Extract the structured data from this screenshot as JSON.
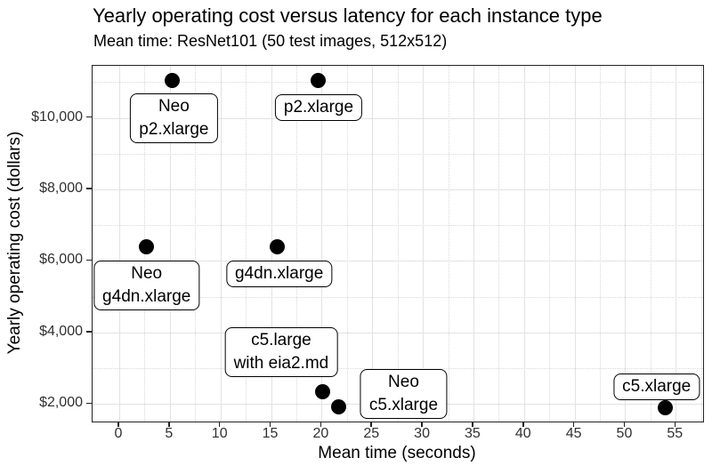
{
  "chart_data": {
    "type": "scatter",
    "title": "Yearly operating cost versus latency for each instance type",
    "subtitle": "Mean time: ResNet101 (50 test images, 512x512)",
    "xlabel": "Mean time (seconds)",
    "ylabel": "Yearly operating cost (dollars)",
    "xlim": [
      -2.64,
      57.7
    ],
    "ylim": [
      1510,
      11460
    ],
    "grid": true,
    "legend": "none",
    "x_ticks": [
      {
        "v": 0,
        "label": "0"
      },
      {
        "v": 5,
        "label": "5"
      },
      {
        "v": 10,
        "label": "10"
      },
      {
        "v": 15,
        "label": "15"
      },
      {
        "v": 20,
        "label": "20"
      },
      {
        "v": 25,
        "label": "25"
      },
      {
        "v": 30,
        "label": "30"
      },
      {
        "v": 35,
        "label": "35"
      },
      {
        "v": 40,
        "label": "40"
      },
      {
        "v": 45,
        "label": "45"
      },
      {
        "v": 50,
        "label": "50"
      },
      {
        "v": 55,
        "label": "55"
      }
    ],
    "y_ticks": [
      {
        "v": 2000,
        "label": "$2,000"
      },
      {
        "v": 4000,
        "label": "$4,000"
      },
      {
        "v": 6000,
        "label": "$6,000"
      },
      {
        "v": 8000,
        "label": "$8,000"
      },
      {
        "v": 10000,
        "label": "$10,000"
      }
    ],
    "x_minor_ticks": [
      2.5,
      7.5,
      12.5,
      17.5,
      22.5,
      27.5,
      32.5,
      37.5,
      42.5,
      47.5,
      52.5,
      57.5
    ],
    "y_minor_ticks": [
      3000,
      5000,
      7000,
      9000,
      11000
    ],
    "points": [
      {
        "name": "Neo p2.xlarge",
        "x": 5.2,
        "y": 11040
      },
      {
        "name": "p2.xlarge",
        "x": 19.7,
        "y": 11040
      },
      {
        "name": "Neo g4dn.xlarge",
        "x": 2.7,
        "y": 6400
      },
      {
        "name": "g4dn.xlarge",
        "x": 15.6,
        "y": 6390
      },
      {
        "name": "c5.large with eia2.md",
        "x": 20.1,
        "y": 2350
      },
      {
        "name": "Neo c5.xlarge",
        "x": 21.7,
        "y": 1930
      },
      {
        "name": "c5.xlarge",
        "x": 54,
        "y": 1900
      }
    ],
    "labels": [
      {
        "lines": [
          "Neo",
          "p2.xlarge"
        ],
        "x": 5.4,
        "y": 10000
      },
      {
        "lines": [
          "p2.xlarge"
        ],
        "x": 19.7,
        "y": 10290
      },
      {
        "lines": [
          "Neo",
          "g4dn.xlarge"
        ],
        "x": 2.7,
        "y": 5320
      },
      {
        "lines": [
          "g4dn.xlarge"
        ],
        "x": 15.8,
        "y": 5630
      },
      {
        "lines": [
          "c5.large",
          "with eia2.md"
        ],
        "x": 16.0,
        "y": 3460
      },
      {
        "lines": [
          "Neo",
          "c5.xlarge"
        ],
        "x": 28.1,
        "y": 2270
      },
      {
        "lines": [
          "c5.xlarge"
        ],
        "x": 53.1,
        "y": 2490
      }
    ],
    "colors": {
      "point": "#000000",
      "grid_major": "#e2e2e2",
      "grid_minor": "#d9d9d9",
      "panel_border": "#222222",
      "label_box_bg": "#ffffff",
      "label_box_border": "#000000",
      "background": "#ffffff"
    }
  }
}
